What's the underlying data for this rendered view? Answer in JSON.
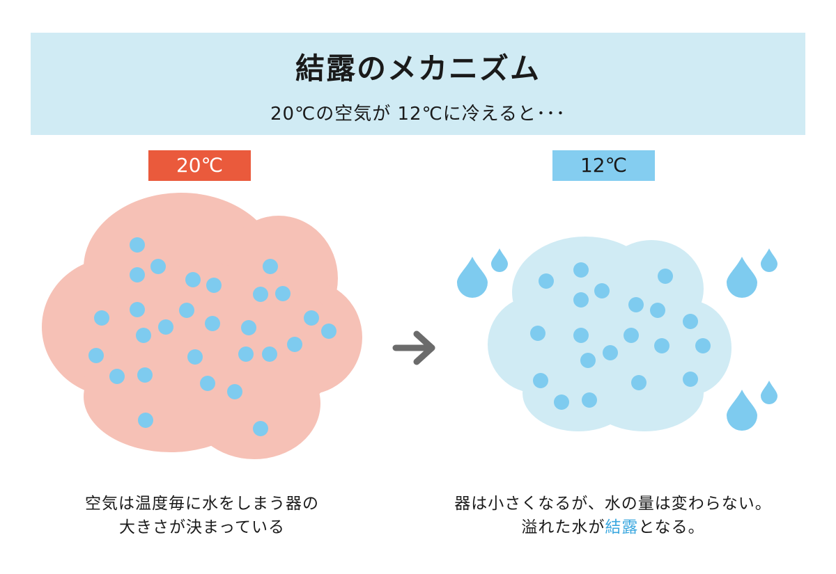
{
  "header": {
    "title": "結露のメカニズム",
    "subtitle": "20℃の空気が 12℃に冷えると･･･"
  },
  "left_panel": {
    "temperature_label": "20℃",
    "caption_line1": "空気は温度毎に水をしまう器の",
    "caption_line2": "大きさが決まっている"
  },
  "right_panel": {
    "temperature_label": "12℃",
    "caption_line1": "器は小さくなるが、水の量は変わらない。",
    "caption_line2_before": "溢れた水が",
    "caption_line2_highlight": "結露",
    "caption_line2_after": "となる。"
  },
  "colors": {
    "banner": "#d0ebf4",
    "warm_label": "#ea5a3c",
    "cool_label": "#84cdf0",
    "warm_cloud": "#f6c1b6",
    "cool_cloud": "#d0ebf4",
    "water_dot": "#7ecbef",
    "arrow": "#6b6b6b",
    "highlight_text": "#3aa7df"
  },
  "icons": {
    "arrow": "right-arrow-icon",
    "drop": "water-drop-icon"
  }
}
